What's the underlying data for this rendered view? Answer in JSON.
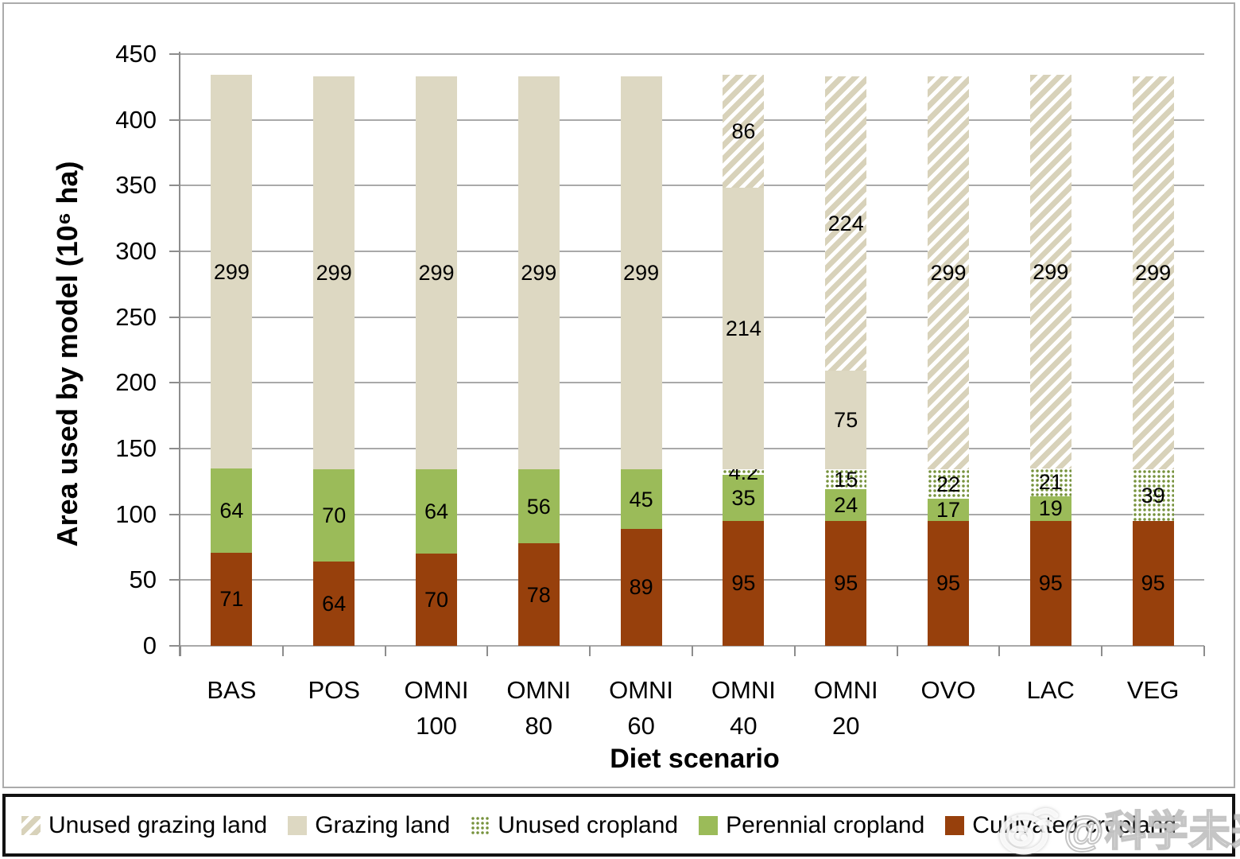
{
  "chart_data": {
    "type": "bar",
    "stacked": true,
    "xlabel": "Diet scenario",
    "ylabel": "Area used by model (10⁶ ha)",
    "ylim": [
      0,
      450
    ],
    "ytick_step": 50,
    "grid": true,
    "legend_position": "bottom",
    "categories": [
      "BAS",
      "POS",
      "OMNI 100",
      "OMNI 80",
      "OMNI 60",
      "OMNI 40",
      "OMNI 20",
      "OVO",
      "LAC",
      "VEG"
    ],
    "series": [
      {
        "name": "Cultivated cropland",
        "pattern": "solid",
        "color": "#97400c",
        "values": [
          71,
          64,
          70,
          78,
          89,
          95,
          95,
          95,
          95,
          95
        ]
      },
      {
        "name": "Perennial cropland",
        "pattern": "solid",
        "color": "#9bbb59",
        "values": [
          64,
          70,
          64,
          56,
          45,
          35,
          24,
          17,
          19,
          0
        ]
      },
      {
        "name": "Unused cropland",
        "pattern": "dots",
        "color": "#76923c",
        "values": [
          0,
          0,
          0,
          0,
          0,
          4.2,
          15,
          22,
          21,
          39
        ]
      },
      {
        "name": "Grazing land",
        "pattern": "solid",
        "color": "#ddd8c2",
        "values": [
          299,
          299,
          299,
          299,
          299,
          214,
          75,
          0,
          0,
          0
        ]
      },
      {
        "name": "Unused grazing land",
        "pattern": "hatch",
        "color": "#d8d2ba",
        "values": [
          0,
          0,
          0,
          0,
          0,
          86,
          224,
          299,
          299,
          299
        ]
      }
    ],
    "legend": {
      "items": [
        {
          "label": "Unused grazing land",
          "pattern": "hatch",
          "color": "#d8d2ba"
        },
        {
          "label": "Grazing land",
          "pattern": "solid",
          "color": "#ddd8c2"
        },
        {
          "label": "Unused cropland",
          "pattern": "dots",
          "color": "#76923c"
        },
        {
          "label": "Perennial cropland",
          "pattern": "solid",
          "color": "#9bbb59"
        },
        {
          "label": "Cultivated cropland",
          "pattern": "solid",
          "color": "#97400c"
        }
      ]
    },
    "colors": {
      "gridline": "#a9a9a9",
      "axis": "#8d8d8d",
      "text": "#000000",
      "background": "#ffffff"
    }
  },
  "watermark": {
    "text": "@科学未来人",
    "icon": "weibo-logo"
  }
}
